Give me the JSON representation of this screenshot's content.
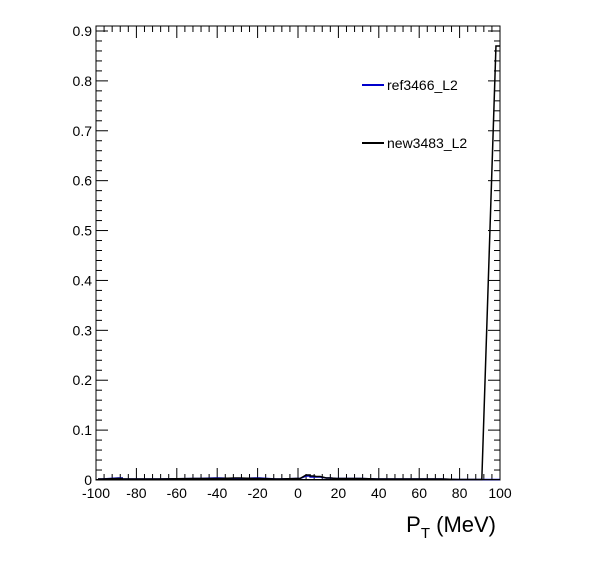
{
  "chart_data": {
    "type": "line",
    "title": "",
    "xlabel": "P",
    "xlabel_sub": "T",
    "xlabel_unit": " (MeV)",
    "ylabel": "",
    "xlim": [
      -100,
      100
    ],
    "ylim": [
      0,
      0.91
    ],
    "x_ticks": [
      -100,
      -80,
      -60,
      -40,
      -20,
      0,
      20,
      40,
      60,
      80,
      100
    ],
    "x_tick_labels": [
      "-100",
      "-80",
      "-60",
      "-40",
      "-20",
      "0",
      "20",
      "40",
      "60",
      "80",
      "100"
    ],
    "y_ticks": [
      0,
      0.1,
      0.2,
      0.3,
      0.4,
      0.5,
      0.6,
      0.7,
      0.8,
      0.9
    ],
    "y_tick_labels": [
      "0",
      "0.1",
      "0.2",
      "0.3",
      "0.4",
      "0.5",
      "0.6",
      "0.7",
      "0.8",
      "0.9"
    ],
    "grid": false,
    "legend_position": "top-right",
    "series": [
      {
        "name": "ref3466_L2",
        "color": "#0000cc",
        "x": [
          -98,
          -88,
          -86,
          -70,
          -50,
          -40,
          -30,
          -20,
          -10,
          0,
          5,
          7,
          10,
          15,
          20,
          30,
          40,
          50,
          60,
          70,
          80,
          90,
          99
        ],
        "y": [
          0.002,
          0.004,
          0.002,
          0.002,
          0.003,
          0.004,
          0.003,
          0.004,
          0.002,
          0.003,
          0.008,
          0.006,
          0.006,
          0.004,
          0.003,
          0.003,
          0.002,
          0.002,
          0.002,
          0.002,
          0.001,
          0.001,
          0.001
        ]
      },
      {
        "name": "new3483_L2",
        "color": "#000000",
        "x": [
          -98,
          -88,
          -86,
          -70,
          -50,
          -40,
          -30,
          -20,
          -10,
          0,
          5,
          7,
          10,
          15,
          20,
          30,
          40,
          50,
          60,
          70,
          80,
          90,
          99
        ],
        "y": [
          0.002,
          0.003,
          0.002,
          0.002,
          0.003,
          0.003,
          0.004,
          0.003,
          0.002,
          0.003,
          0.01,
          0.008,
          0.007,
          0.004,
          0.003,
          0.003,
          0.002,
          0.002,
          0.002,
          0.002,
          0.001,
          0.001,
          0.87
        ]
      }
    ]
  }
}
